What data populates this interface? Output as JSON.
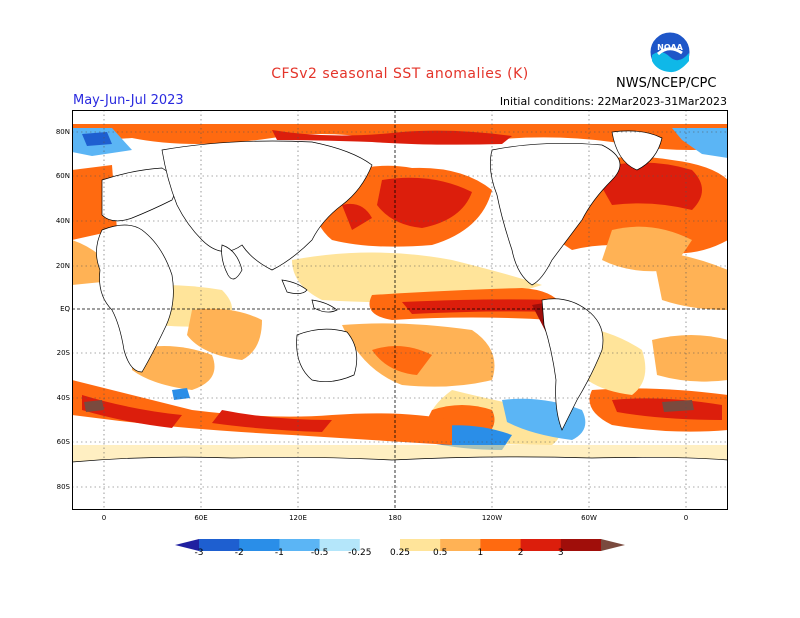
{
  "header": {
    "title": "CFSv2 seasonal SST anomalies (K)",
    "season": "May-Jun-Jul 2023",
    "initial_conditions": "Initial conditions: 22Mar2023-31Mar2023",
    "agency": "NWS/NCEP/CPC",
    "logo_text": "NOAA"
  },
  "map": {
    "lat_labels": [
      "80N",
      "60N",
      "40N",
      "20N",
      "EQ",
      "20S",
      "40S",
      "60S",
      "80S"
    ],
    "lon_labels": [
      "0",
      "60E",
      "120E",
      "180",
      "120W",
      "60W",
      "0"
    ]
  },
  "colorbar": {
    "levels": [
      "-3",
      "-2",
      "-1",
      "-0.5",
      "-0.25",
      "0.25",
      "0.5",
      "1",
      "2",
      "3"
    ],
    "colors": [
      "#2020a0",
      "#1e5fd0",
      "#2a8ee8",
      "#5bb5f5",
      "#b4e6fa",
      "#ffffff",
      "#ffe49a",
      "#ffb255",
      "#ff6a10",
      "#dc1e0c",
      "#a00e0a",
      "#7a4a3e"
    ]
  },
  "legend_colors": {
    "land": "#ffffff",
    "grid": "#555555",
    "coast": "#000000"
  }
}
